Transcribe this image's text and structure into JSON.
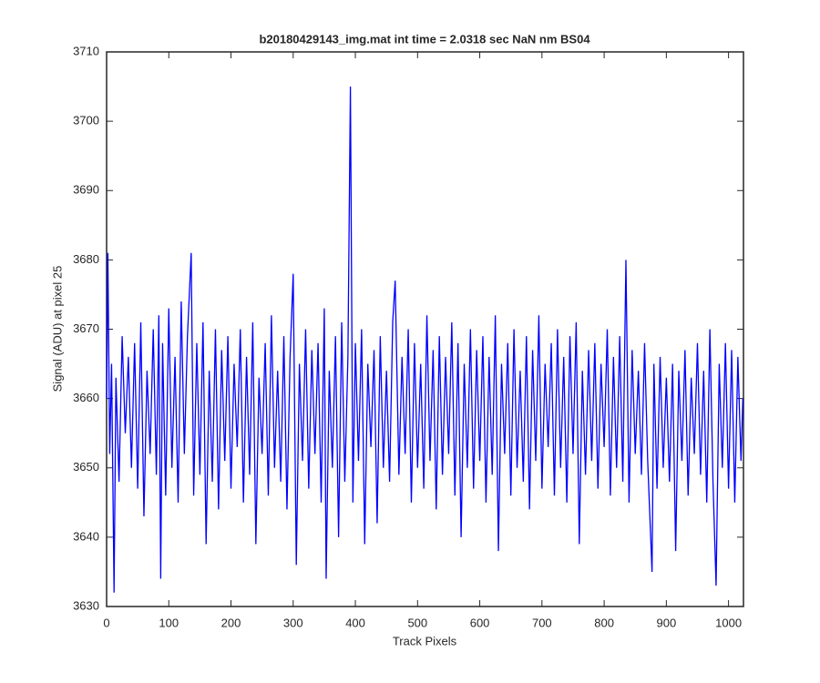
{
  "chart_data": {
    "type": "line",
    "title": "b20180429143_img.mat int time = 2.0318 sec  NaN nm BS04",
    "x_label": "Track Pixels",
    "y_label": "Signal (ADU) at pixel 25",
    "color": "#0000ff",
    "grid": false,
    "xlim": [
      0,
      1024
    ],
    "ylim": [
      3630,
      3710
    ],
    "xticks": [
      0,
      100,
      200,
      300,
      400,
      500,
      600,
      700,
      800,
      900,
      1000
    ],
    "yticks": [
      3630,
      3640,
      3650,
      3660,
      3670,
      3680,
      3690,
      3700,
      3710
    ],
    "x": [
      0,
      2,
      5,
      8,
      12,
      15,
      20,
      25,
      30,
      35,
      40,
      45,
      50,
      55,
      60,
      65,
      70,
      75,
      80,
      84,
      87,
      90,
      95,
      100,
      105,
      110,
      115,
      120,
      125,
      130,
      136,
      140,
      145,
      150,
      155,
      160,
      165,
      170,
      175,
      180,
      185,
      190,
      195,
      200,
      205,
      210,
      215,
      220,
      225,
      230,
      235,
      240,
      245,
      250,
      255,
      260,
      265,
      270,
      275,
      280,
      285,
      290,
      295,
      300,
      305,
      310,
      315,
      320,
      325,
      330,
      335,
      340,
      345,
      350,
      353,
      358,
      363,
      368,
      373,
      378,
      383,
      388,
      392,
      396,
      400,
      405,
      410,
      415,
      420,
      425,
      430,
      435,
      440,
      445,
      450,
      455,
      460,
      464,
      470,
      475,
      480,
      485,
      490,
      495,
      500,
      505,
      510,
      515,
      520,
      525,
      530,
      535,
      540,
      545,
      550,
      555,
      560,
      565,
      570,
      575,
      580,
      585,
      590,
      595,
      600,
      605,
      610,
      615,
      620,
      625,
      630,
      635,
      640,
      645,
      650,
      655,
      660,
      665,
      670,
      675,
      680,
      685,
      690,
      695,
      700,
      705,
      710,
      715,
      720,
      725,
      730,
      735,
      740,
      745,
      750,
      755,
      760,
      765,
      770,
      775,
      780,
      785,
      790,
      795,
      800,
      805,
      810,
      815,
      820,
      825,
      830,
      835,
      840,
      845,
      850,
      855,
      860,
      865,
      870,
      877,
      880,
      885,
      890,
      895,
      900,
      905,
      910,
      915,
      920,
      925,
      930,
      935,
      940,
      945,
      950,
      955,
      960,
      965,
      970,
      975,
      980,
      985,
      990,
      995,
      1000,
      1005,
      1010,
      1015,
      1020,
      1023
    ],
    "values": [
      3660,
      3681,
      3652,
      3665,
      3632,
      3663,
      3648,
      3669,
      3655,
      3666,
      3650,
      3668,
      3647,
      3671,
      3643,
      3664,
      3652,
      3670,
      3649,
      3672,
      3634,
      3668,
      3646,
      3673,
      3650,
      3666,
      3645,
      3674,
      3652,
      3669,
      3681,
      3646,
      3668,
      3649,
      3671,
      3639,
      3664,
      3648,
      3670,
      3644,
      3667,
      3651,
      3669,
      3647,
      3665,
      3653,
      3670,
      3645,
      3666,
      3649,
      3671,
      3639,
      3663,
      3652,
      3668,
      3646,
      3672,
      3650,
      3664,
      3648,
      3669,
      3644,
      3666,
      3678,
      3636,
      3665,
      3651,
      3670,
      3647,
      3667,
      3652,
      3668,
      3645,
      3673,
      3634,
      3664,
      3650,
      3669,
      3640,
      3671,
      3648,
      3666,
      3705,
      3645,
      3668,
      3651,
      3670,
      3639,
      3665,
      3653,
      3667,
      3642,
      3669,
      3650,
      3664,
      3648,
      3671,
      3677,
      3649,
      3666,
      3652,
      3670,
      3645,
      3668,
      3650,
      3665,
      3647,
      3672,
      3651,
      3667,
      3644,
      3669,
      3649,
      3666,
      3652,
      3671,
      3646,
      3668,
      3640,
      3665,
      3650,
      3670,
      3647,
      3667,
      3651,
      3669,
      3645,
      3666,
      3649,
      3672,
      3638,
      3665,
      3652,
      3668,
      3646,
      3670,
      3650,
      3664,
      3648,
      3669,
      3644,
      3667,
      3651,
      3672,
      3647,
      3665,
      3653,
      3668,
      3646,
      3670,
      3650,
      3666,
      3645,
      3669,
      3652,
      3671,
      3639,
      3664,
      3649,
      3667,
      3651,
      3668,
      3647,
      3665,
      3653,
      3670,
      3646,
      3666,
      3650,
      3669,
      3648,
      3680,
      3645,
      3667,
      3652,
      3664,
      3649,
      3668,
      3651,
      3635,
      3665,
      3647,
      3666,
      3650,
      3663,
      3648,
      3665,
      3638,
      3664,
      3651,
      3667,
      3646,
      3663,
      3652,
      3668,
      3649,
      3664,
      3645,
      3670,
      3648,
      3633,
      3665,
      3650,
      3668,
      3647,
      3667,
      3645,
      3666,
      3651,
      3660
    ]
  }
}
